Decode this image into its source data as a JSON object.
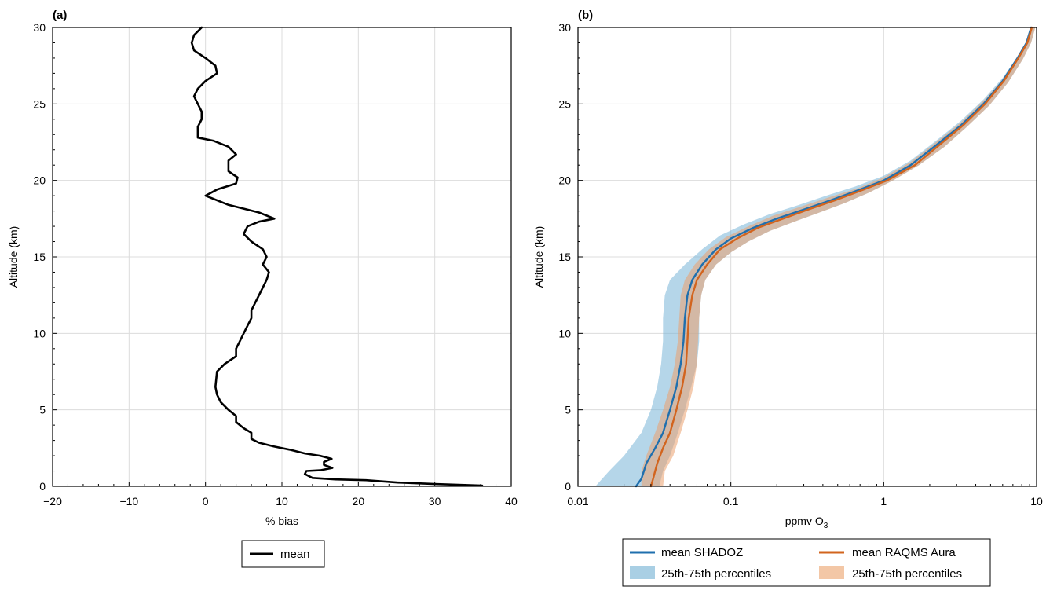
{
  "chart_data": [
    {
      "panel_label": "(a)",
      "type": "line",
      "xlabel": "% bias",
      "ylabel": "Altitude (km)",
      "xlim": [
        -20,
        40
      ],
      "ylim": [
        0,
        30
      ],
      "xticks": [
        -20,
        -10,
        0,
        10,
        20,
        30,
        40
      ],
      "xtick_labels": [
        "−20",
        "−10",
        "0",
        "10",
        "20",
        "30",
        "40"
      ],
      "yticks": [
        0,
        5,
        10,
        15,
        20,
        25,
        30
      ],
      "ytick_labels": [
        "0",
        "5",
        "10",
        "15",
        "20",
        "25",
        "30"
      ],
      "grid": true,
      "legend_position": "bottom-center",
      "series": [
        {
          "name": "mean",
          "color": "#000000",
          "points": [
            [
              36.2,
              0.05
            ],
            [
              30.0,
              0.15
            ],
            [
              25.0,
              0.25
            ],
            [
              21.0,
              0.4
            ],
            [
              17.0,
              0.45
            ],
            [
              14.0,
              0.55
            ],
            [
              13.0,
              0.8
            ],
            [
              13.2,
              1.0
            ],
            [
              15.0,
              1.05
            ],
            [
              16.6,
              1.2
            ],
            [
              15.5,
              1.4
            ],
            [
              15.5,
              1.6
            ],
            [
              16.5,
              1.8
            ],
            [
              15.0,
              2.0
            ],
            [
              13.0,
              2.15
            ],
            [
              11.0,
              2.4
            ],
            [
              9.0,
              2.6
            ],
            [
              7.0,
              2.85
            ],
            [
              6.0,
              3.1
            ],
            [
              6.0,
              3.5
            ],
            [
              5.0,
              3.8
            ],
            [
              4.0,
              4.2
            ],
            [
              4.0,
              4.6
            ],
            [
              3.0,
              5.0
            ],
            [
              2.0,
              5.5
            ],
            [
              1.5,
              6.0
            ],
            [
              1.3,
              6.5
            ],
            [
              1.4,
              7.0
            ],
            [
              1.5,
              7.5
            ],
            [
              2.5,
              8.0
            ],
            [
              4.0,
              8.5
            ],
            [
              4.0,
              9.0
            ],
            [
              4.5,
              9.5
            ],
            [
              5.0,
              10.0
            ],
            [
              5.5,
              10.5
            ],
            [
              6.0,
              11.0
            ],
            [
              6.0,
              11.5
            ],
            [
              6.5,
              12.0
            ],
            [
              7.0,
              12.5
            ],
            [
              7.5,
              13.0
            ],
            [
              8.0,
              13.5
            ],
            [
              8.3,
              14.0
            ],
            [
              7.5,
              14.5
            ],
            [
              8.0,
              15.0
            ],
            [
              7.5,
              15.5
            ],
            [
              6.0,
              16.0
            ],
            [
              5.0,
              16.5
            ],
            [
              5.5,
              17.0
            ],
            [
              7.0,
              17.3
            ],
            [
              9.0,
              17.5
            ],
            [
              7.0,
              17.9
            ],
            [
              3.0,
              18.4
            ],
            [
              0.0,
              19.0
            ],
            [
              1.5,
              19.4
            ],
            [
              4.0,
              19.8
            ],
            [
              4.2,
              20.2
            ],
            [
              3.0,
              20.6
            ],
            [
              3.0,
              21.3
            ],
            [
              4.0,
              21.7
            ],
            [
              3.0,
              22.2
            ],
            [
              1.0,
              22.6
            ],
            [
              -1.0,
              22.8
            ],
            [
              -1.0,
              23.5
            ],
            [
              -0.5,
              24.0
            ],
            [
              -0.5,
              24.5
            ],
            [
              -1.0,
              25.0
            ],
            [
              -1.5,
              25.5
            ],
            [
              -1.0,
              26.0
            ],
            [
              0.0,
              26.5
            ],
            [
              1.5,
              27.0
            ],
            [
              1.3,
              27.5
            ],
            [
              0.0,
              28.0
            ],
            [
              -1.5,
              28.5
            ],
            [
              -1.8,
              29.0
            ],
            [
              -1.5,
              29.5
            ],
            [
              -0.5,
              30.0
            ]
          ]
        }
      ]
    },
    {
      "panel_label": "(b)",
      "type": "area",
      "xlabel": "ppmv O",
      "xlabel_subscript": "3",
      "ylabel": "Altitude (km)",
      "xscale": "log",
      "xlim": [
        0.01,
        10
      ],
      "ylim": [
        0,
        30
      ],
      "xticks": [
        0.01,
        0.1,
        1,
        10
      ],
      "xtick_labels": [
        "0.01",
        "0.1",
        "1",
        "10"
      ],
      "yticks": [
        0,
        5,
        10,
        15,
        20,
        25,
        30
      ],
      "ytick_labels": [
        "0",
        "5",
        "10",
        "15",
        "20",
        "25",
        "30"
      ],
      "grid": true,
      "legend_position": "bottom-center",
      "series": [
        {
          "name": "mean SHADOZ",
          "color": "#1f6fae",
          "points": [
            [
              0.024,
              0
            ],
            [
              0.026,
              0.5
            ],
            [
              0.027,
              1.0
            ],
            [
              0.028,
              1.5
            ],
            [
              0.032,
              2.5
            ],
            [
              0.036,
              3.5
            ],
            [
              0.04,
              5.0
            ],
            [
              0.044,
              6.5
            ],
            [
              0.047,
              8.0
            ],
            [
              0.049,
              9.5
            ],
            [
              0.05,
              11.0
            ],
            [
              0.052,
              12.5
            ],
            [
              0.056,
              13.5
            ],
            [
              0.065,
              14.5
            ],
            [
              0.08,
              15.5
            ],
            [
              0.1,
              16.2
            ],
            [
              0.14,
              16.9
            ],
            [
              0.2,
              17.5
            ],
            [
              0.3,
              18.1
            ],
            [
              0.45,
              18.7
            ],
            [
              0.7,
              19.4
            ],
            [
              1.0,
              20.0
            ],
            [
              1.5,
              21.0
            ],
            [
              2.2,
              22.3
            ],
            [
              3.2,
              23.6
            ],
            [
              4.5,
              25.0
            ],
            [
              6.0,
              26.5
            ],
            [
              7.5,
              28.0
            ],
            [
              8.6,
              29.0
            ],
            [
              9.2,
              30.0
            ]
          ],
          "band_low": [
            [
              0.013,
              0
            ],
            [
              0.016,
              1.0
            ],
            [
              0.02,
              2.0
            ],
            [
              0.026,
              3.5
            ],
            [
              0.03,
              5.0
            ],
            [
              0.033,
              6.5
            ],
            [
              0.035,
              8.0
            ],
            [
              0.036,
              9.5
            ],
            [
              0.036,
              11.0
            ],
            [
              0.037,
              12.5
            ],
            [
              0.04,
              13.5
            ],
            [
              0.05,
              14.5
            ],
            [
              0.065,
              15.5
            ],
            [
              0.085,
              16.4
            ],
            [
              0.12,
              17.1
            ],
            [
              0.18,
              17.8
            ],
            [
              0.28,
              18.4
            ],
            [
              0.42,
              19.0
            ],
            [
              0.65,
              19.6
            ],
            [
              1.0,
              20.3
            ],
            [
              1.5,
              21.3
            ],
            [
              2.2,
              22.6
            ],
            [
              3.2,
              23.9
            ],
            [
              4.5,
              25.3
            ],
            [
              6.0,
              26.7
            ],
            [
              7.5,
              28.1
            ],
            [
              8.6,
              29.1
            ],
            [
              9.1,
              30.0
            ]
          ],
          "band_high": [
            [
              0.034,
              0
            ],
            [
              0.036,
              1.0
            ],
            [
              0.04,
              2.0
            ],
            [
              0.045,
              3.5
            ],
            [
              0.05,
              5.0
            ],
            [
              0.055,
              6.5
            ],
            [
              0.06,
              8.0
            ],
            [
              0.062,
              9.5
            ],
            [
              0.062,
              11.0
            ],
            [
              0.064,
              12.5
            ],
            [
              0.068,
              13.5
            ],
            [
              0.08,
              14.5
            ],
            [
              0.1,
              15.3
            ],
            [
              0.13,
              16.0
            ],
            [
              0.18,
              16.7
            ],
            [
              0.26,
              17.3
            ],
            [
              0.38,
              17.9
            ],
            [
              0.55,
              18.5
            ],
            [
              0.8,
              19.2
            ],
            [
              1.15,
              20.0
            ],
            [
              1.7,
              21.0
            ],
            [
              2.5,
              22.2
            ],
            [
              3.5,
              23.5
            ],
            [
              4.9,
              24.9
            ],
            [
              6.5,
              26.4
            ],
            [
              8.1,
              27.9
            ],
            [
              9.2,
              29.0
            ],
            [
              9.8,
              30.0
            ]
          ]
        },
        {
          "name": "mean RAQMS Aura",
          "color": "#d2641e",
          "points": [
            [
              0.03,
              0
            ],
            [
              0.031,
              0.5
            ],
            [
              0.032,
              1.0
            ],
            [
              0.033,
              1.5
            ],
            [
              0.036,
              2.5
            ],
            [
              0.04,
              3.5
            ],
            [
              0.044,
              5.0
            ],
            [
              0.048,
              6.5
            ],
            [
              0.051,
              8.0
            ],
            [
              0.052,
              9.5
            ],
            [
              0.053,
              11.0
            ],
            [
              0.056,
              12.5
            ],
            [
              0.06,
              13.5
            ],
            [
              0.07,
              14.5
            ],
            [
              0.085,
              15.5
            ],
            [
              0.11,
              16.2
            ],
            [
              0.15,
              16.9
            ],
            [
              0.22,
              17.5
            ],
            [
              0.32,
              18.1
            ],
            [
              0.48,
              18.7
            ],
            [
              0.74,
              19.4
            ],
            [
              1.05,
              20.0
            ],
            [
              1.6,
              21.0
            ],
            [
              2.3,
              22.3
            ],
            [
              3.3,
              23.6
            ],
            [
              4.6,
              25.0
            ],
            [
              6.1,
              26.5
            ],
            [
              7.6,
              28.0
            ],
            [
              8.7,
              29.0
            ],
            [
              9.3,
              30.0
            ]
          ],
          "band_low": [
            [
              0.026,
              0
            ],
            [
              0.026,
              1.0
            ],
            [
              0.028,
              2.0
            ],
            [
              0.032,
              3.5
            ],
            [
              0.036,
              5.0
            ],
            [
              0.04,
              6.5
            ],
            [
              0.043,
              8.0
            ],
            [
              0.045,
              9.5
            ],
            [
              0.046,
              11.0
            ],
            [
              0.047,
              12.5
            ],
            [
              0.05,
              13.5
            ],
            [
              0.058,
              14.5
            ],
            [
              0.072,
              15.5
            ],
            [
              0.093,
              16.3
            ],
            [
              0.13,
              17.0
            ],
            [
              0.19,
              17.7
            ],
            [
              0.29,
              18.3
            ],
            [
              0.44,
              18.9
            ],
            [
              0.68,
              19.5
            ],
            [
              1.0,
              20.2
            ],
            [
              1.5,
              21.2
            ],
            [
              2.2,
              22.5
            ],
            [
              3.2,
              23.8
            ],
            [
              4.5,
              25.2
            ],
            [
              6.0,
              26.6
            ],
            [
              7.5,
              28.1
            ],
            [
              8.6,
              29.1
            ],
            [
              9.1,
              30.0
            ]
          ],
          "band_high": [
            [
              0.036,
              0
            ],
            [
              0.037,
              1.0
            ],
            [
              0.042,
              2.0
            ],
            [
              0.047,
              3.5
            ],
            [
              0.052,
              5.0
            ],
            [
              0.057,
              6.5
            ],
            [
              0.06,
              8.0
            ],
            [
              0.061,
              9.5
            ],
            [
              0.062,
              11.0
            ],
            [
              0.064,
              12.5
            ],
            [
              0.068,
              13.5
            ],
            [
              0.08,
              14.5
            ],
            [
              0.1,
              15.3
            ],
            [
              0.13,
              16.0
            ],
            [
              0.18,
              16.7
            ],
            [
              0.26,
              17.3
            ],
            [
              0.38,
              17.9
            ],
            [
              0.55,
              18.5
            ],
            [
              0.8,
              19.2
            ],
            [
              1.15,
              20.0
            ],
            [
              1.7,
              21.0
            ],
            [
              2.5,
              22.2
            ],
            [
              3.5,
              23.5
            ],
            [
              4.9,
              24.9
            ],
            [
              6.5,
              26.4
            ],
            [
              8.1,
              27.9
            ],
            [
              9.2,
              29.0
            ],
            [
              9.8,
              30.0
            ]
          ]
        }
      ],
      "legend": [
        {
          "label": "mean SHADOZ",
          "kind": "line",
          "color": "#1f6fae"
        },
        {
          "label": "mean RAQMS Aura",
          "kind": "line",
          "color": "#d2641e"
        },
        {
          "label": "25th-75th percentiles",
          "kind": "band",
          "color": "#a9cfe4"
        },
        {
          "label": "25th-75th percentiles",
          "kind": "band",
          "color": "#f3c7a6"
        }
      ]
    }
  ]
}
